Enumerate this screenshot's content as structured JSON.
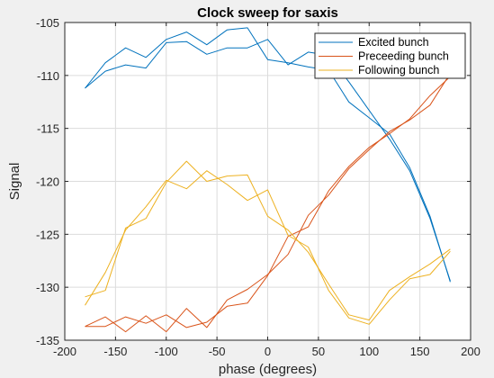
{
  "chart_data": {
    "type": "line",
    "title": "Clock sweep for saxis",
    "xlabel": "phase (degrees)",
    "ylabel": "Signal",
    "xlim": [
      -200,
      200
    ],
    "ylim": [
      -135,
      -105
    ],
    "xticks": [
      -200,
      -150,
      -100,
      -50,
      0,
      50,
      100,
      150,
      200
    ],
    "yticks": [
      -105,
      -110,
      -115,
      -120,
      -125,
      -130,
      -135
    ],
    "grid": true,
    "legend_location": "top-right",
    "series": [
      {
        "name": "Excited bunch",
        "color": "#0072BD",
        "segments": [
          [
            [
              -180,
              -111.2
            ],
            [
              -160,
              -108.8
            ],
            [
              -140,
              -107.4
            ],
            [
              -120,
              -108.3
            ],
            [
              -100,
              -106.6
            ],
            [
              -80,
              -105.9
            ],
            [
              -60,
              -107.1
            ],
            [
              -40,
              -105.7
            ],
            [
              -20,
              -105.5
            ],
            [
              0,
              -108.5
            ],
            [
              20,
              -108.8
            ],
            [
              40,
              -109.2
            ],
            [
              60,
              -109.5
            ],
            [
              80,
              -112.5
            ],
            [
              100,
              -114.0
            ],
            [
              120,
              -115.5
            ],
            [
              140,
              -118.7
            ],
            [
              160,
              -123.3
            ],
            [
              180,
              -129.5
            ]
          ],
          [
            [
              -180,
              -111.2
            ],
            [
              -160,
              -109.6
            ],
            [
              -140,
              -109.0
            ],
            [
              -120,
              -109.3
            ],
            [
              -100,
              -106.9
            ],
            [
              -80,
              -106.8
            ],
            [
              -60,
              -108.0
            ],
            [
              -40,
              -107.4
            ],
            [
              -20,
              -107.4
            ],
            [
              0,
              -106.6
            ],
            [
              20,
              -109.0
            ],
            [
              40,
              -107.8
            ],
            [
              60,
              -108.1
            ],
            [
              80,
              -110.6
            ],
            [
              100,
              -113.3
            ],
            [
              120,
              -116.0
            ],
            [
              140,
              -119.0
            ],
            [
              160,
              -123.5
            ],
            [
              180,
              -129.4
            ]
          ]
        ]
      },
      {
        "name": "Preceeding bunch",
        "color": "#D95319",
        "segments": [
          [
            [
              -180,
              -133.7
            ],
            [
              -160,
              -132.8
            ],
            [
              -140,
              -134.2
            ],
            [
              -120,
              -132.7
            ],
            [
              -100,
              -134.2
            ],
            [
              -80,
              -132.0
            ],
            [
              -60,
              -133.8
            ],
            [
              -40,
              -131.2
            ],
            [
              -20,
              -130.2
            ],
            [
              0,
              -128.8
            ],
            [
              20,
              -126.9
            ],
            [
              40,
              -123.2
            ],
            [
              60,
              -121.3
            ],
            [
              80,
              -118.8
            ],
            [
              100,
              -117.0
            ],
            [
              120,
              -115.3
            ],
            [
              140,
              -114.2
            ],
            [
              160,
              -112.8
            ],
            [
              180,
              -109.8
            ]
          ],
          [
            [
              -180,
              -133.7
            ],
            [
              -160,
              -133.7
            ],
            [
              -140,
              -132.8
            ],
            [
              -120,
              -133.4
            ],
            [
              -100,
              -132.6
            ],
            [
              -80,
              -133.8
            ],
            [
              -60,
              -133.3
            ],
            [
              -40,
              -131.8
            ],
            [
              -20,
              -131.5
            ],
            [
              0,
              -128.9
            ],
            [
              20,
              -125.2
            ],
            [
              40,
              -124.3
            ],
            [
              60,
              -120.9
            ],
            [
              80,
              -118.6
            ],
            [
              100,
              -116.8
            ],
            [
              120,
              -115.5
            ],
            [
              140,
              -114.1
            ],
            [
              160,
              -111.9
            ],
            [
              180,
              -110.1
            ]
          ]
        ]
      },
      {
        "name": "Following bunch",
        "color": "#EDB120",
        "segments": [
          [
            [
              -180,
              -131.7
            ],
            [
              -160,
              -128.6
            ],
            [
              -140,
              -124.6
            ],
            [
              -120,
              -122.4
            ],
            [
              -100,
              -119.9
            ],
            [
              -80,
              -120.7
            ],
            [
              -60,
              -119.0
            ],
            [
              -40,
              -120.3
            ],
            [
              -20,
              -121.8
            ],
            [
              0,
              -120.8
            ],
            [
              20,
              -125.1
            ],
            [
              40,
              -126.2
            ],
            [
              60,
              -130.3
            ],
            [
              80,
              -132.9
            ],
            [
              100,
              -133.5
            ],
            [
              120,
              -131.2
            ],
            [
              140,
              -129.2
            ],
            [
              160,
              -128.8
            ],
            [
              180,
              -126.6
            ]
          ],
          [
            [
              -180,
              -130.9
            ],
            [
              -160,
              -130.3
            ],
            [
              -140,
              -124.4
            ],
            [
              -120,
              -123.5
            ],
            [
              -100,
              -120.1
            ],
            [
              -80,
              -118.1
            ],
            [
              -60,
              -120.0
            ],
            [
              -40,
              -119.5
            ],
            [
              -20,
              -119.4
            ],
            [
              0,
              -123.3
            ],
            [
              20,
              -124.6
            ],
            [
              40,
              -126.7
            ],
            [
              60,
              -129.7
            ],
            [
              80,
              -132.6
            ],
            [
              100,
              -133.1
            ],
            [
              120,
              -130.3
            ],
            [
              140,
              -129.0
            ],
            [
              160,
              -127.8
            ],
            [
              180,
              -126.4
            ]
          ]
        ]
      }
    ]
  }
}
